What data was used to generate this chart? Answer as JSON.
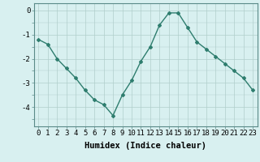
{
  "x": [
    0,
    1,
    2,
    3,
    4,
    5,
    6,
    7,
    8,
    9,
    10,
    11,
    12,
    13,
    14,
    15,
    16,
    17,
    18,
    19,
    20,
    21,
    22,
    23
  ],
  "y": [
    -1.2,
    -1.4,
    -2.0,
    -2.4,
    -2.8,
    -3.3,
    -3.7,
    -3.9,
    -4.35,
    -3.5,
    -2.9,
    -2.1,
    -1.5,
    -0.6,
    -0.1,
    -0.1,
    -0.7,
    -1.3,
    -1.6,
    -1.9,
    -2.2,
    -2.5,
    -2.8,
    -3.3
  ],
  "line_color": "#2e7d6e",
  "marker": "D",
  "marker_size": 2.0,
  "bg_color": "#d8f0f0",
  "grid_color": "#b0cecb",
  "xlabel": "Humidex (Indice chaleur)",
  "ylim": [
    -4.8,
    0.3
  ],
  "xlim": [
    -0.5,
    23.5
  ],
  "yticks": [
    0,
    -1,
    -2,
    -3,
    -4
  ],
  "xticks": [
    0,
    1,
    2,
    3,
    4,
    5,
    6,
    7,
    8,
    9,
    10,
    11,
    12,
    13,
    14,
    15,
    16,
    17,
    18,
    19,
    20,
    21,
    22,
    23
  ],
  "tick_label_fontsize": 6.5,
  "xlabel_fontsize": 7.5,
  "line_width": 1.0
}
